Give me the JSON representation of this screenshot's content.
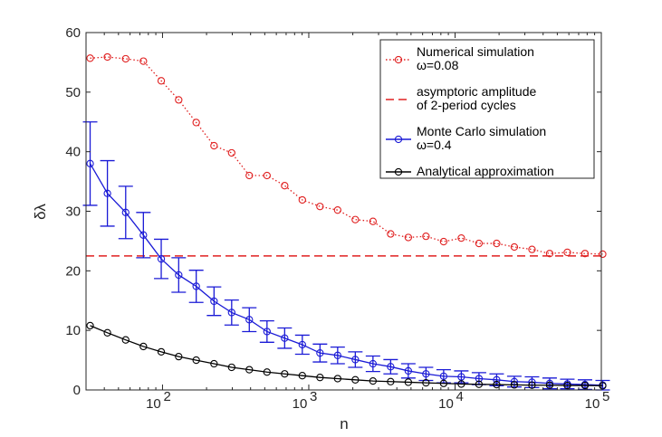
{
  "chart_data": {
    "type": "line",
    "xscale": "log",
    "xlim": [
      30,
      100000
    ],
    "ylim": [
      0,
      60
    ],
    "yticks": [
      0,
      10,
      20,
      30,
      40,
      50,
      60
    ],
    "ytick_labels": [
      "0",
      "10",
      "20",
      "30",
      "40",
      "50",
      "60"
    ],
    "xticks": [
      {
        "value": 100,
        "base": "10",
        "exp": "2"
      },
      {
        "value": 1000,
        "base": "10",
        "exp": "3"
      },
      {
        "value": 10000,
        "base": "10",
        "exp": "4"
      },
      {
        "value": 100000,
        "base": "10",
        "exp": "5"
      }
    ],
    "xlabel": "n",
    "ylabel": "δλ",
    "x": [
      32,
      42,
      56,
      74,
      98,
      129,
      170,
      225,
      297,
      392,
      518,
      684,
      903,
      1193,
      1575,
      2080,
      2747,
      3628,
      4791,
      6327,
      8356,
      11036,
      14574,
      19248,
      25420,
      33571,
      44336,
      58552,
      77328,
      102122
    ],
    "series": [
      {
        "name": "Numerical simulation",
        "legend_lines": [
          "Numerical simulation",
          "ω=0.08"
        ],
        "color": "#e02020",
        "linestyle": "dotted",
        "marker": "circle",
        "values": [
          55.7,
          55.9,
          55.6,
          55.2,
          51.9,
          48.7,
          44.9,
          41.0,
          39.8,
          36.0,
          36.0,
          34.3,
          31.9,
          30.8,
          30.2,
          28.6,
          28.3,
          26.2,
          25.6,
          25.8,
          24.9,
          25.5,
          24.6,
          24.6,
          24.0,
          23.6,
          22.9,
          23.1,
          22.9,
          22.8
        ]
      },
      {
        "name": "asymptoric amplitude of 2-period cycles",
        "legend_lines": [
          "asymptoric amplitude",
          "of 2-period cycles"
        ],
        "color": "#e02020",
        "linestyle": "dashed",
        "marker": "none",
        "constant": 22.5
      },
      {
        "name": "Monte Carlo simulation",
        "legend_lines": [
          "Monte Carlo simulation",
          "ω=0.4"
        ],
        "color": "#1a1ad6",
        "linestyle": "solid",
        "marker": "circle",
        "values": [
          38.0,
          33.0,
          29.8,
          26.0,
          22.0,
          19.3,
          17.4,
          14.9,
          13.0,
          11.8,
          9.8,
          8.7,
          7.6,
          6.2,
          5.8,
          5.1,
          4.4,
          3.9,
          3.2,
          2.7,
          2.3,
          2.2,
          1.9,
          1.7,
          1.4,
          1.3,
          1.1,
          1.0,
          0.9,
          0.8
        ],
        "errors": [
          7.0,
          5.5,
          4.4,
          3.8,
          3.3,
          2.9,
          2.7,
          2.4,
          2.1,
          2.0,
          1.8,
          1.7,
          1.6,
          1.5,
          1.4,
          1.3,
          1.3,
          1.2,
          1.2,
          1.1,
          1.1,
          1.0,
          1.0,
          1.0,
          0.9,
          0.9,
          0.9,
          0.8,
          0.8,
          0.8
        ]
      },
      {
        "name": "Analytical approximation",
        "legend_lines": [
          "Analytical approximation"
        ],
        "color": "#000000",
        "linestyle": "solid",
        "marker": "circle",
        "values": [
          10.8,
          9.6,
          8.4,
          7.3,
          6.4,
          5.6,
          5.0,
          4.4,
          3.8,
          3.4,
          3.0,
          2.7,
          2.4,
          2.1,
          1.9,
          1.7,
          1.5,
          1.4,
          1.3,
          1.2,
          1.1,
          1.0,
          0.95,
          0.9,
          0.85,
          0.8,
          0.8,
          0.75,
          0.75,
          0.7
        ]
      }
    ],
    "legend_position": "top-right"
  }
}
